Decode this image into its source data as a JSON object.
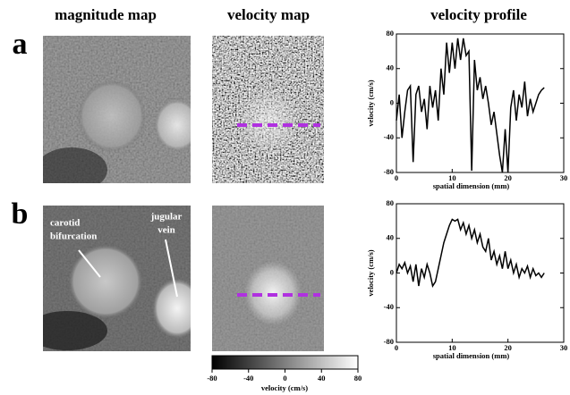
{
  "headers": [
    "magnitude map",
    "velocity map",
    "velocity profile"
  ],
  "panel_labels": [
    "a",
    "b"
  ],
  "annotations": [
    "carotid",
    "bifurcation",
    "jugular",
    "vein"
  ],
  "colorbar": {
    "ticks": [
      -80,
      -40,
      0,
      40,
      80
    ],
    "label": "velocity (cm/s)"
  },
  "chart_data": [
    {
      "type": "line",
      "xlabel": "spatial dimension (mm)",
      "ylabel": "velocity (cm/s)",
      "xlim": [
        0,
        30
      ],
      "xticks": [
        0,
        10,
        20,
        30
      ],
      "ylim": [
        -80,
        80
      ],
      "yticks": [
        -80,
        -40,
        0,
        40,
        80
      ],
      "color": "#000000",
      "x": [
        0,
        0.5,
        1,
        1.5,
        2,
        2.5,
        3,
        3.5,
        4,
        4.5,
        5,
        5.5,
        6,
        6.5,
        7,
        7.5,
        8,
        8.5,
        9,
        9.5,
        10,
        10.5,
        11,
        11.5,
        12,
        12.5,
        13,
        13.5,
        14,
        14.5,
        15,
        15.5,
        16,
        16.5,
        17,
        17.5,
        18,
        18.5,
        19,
        19.5,
        20,
        20.5,
        21,
        21.5,
        22,
        22.5,
        23,
        23.5,
        24,
        24.5,
        25,
        25.5,
        26,
        26.5
      ],
      "values": [
        -20,
        10,
        -40,
        -10,
        15,
        20,
        -68,
        10,
        20,
        -10,
        5,
        -30,
        20,
        -5,
        15,
        -20,
        40,
        10,
        70,
        35,
        70,
        40,
        75,
        50,
        75,
        55,
        60,
        -78,
        50,
        15,
        30,
        5,
        20,
        0,
        -25,
        -10,
        -35,
        -60,
        -80,
        -30,
        -80,
        -5,
        15,
        -20,
        10,
        -5,
        25,
        -15,
        5,
        -10,
        0,
        10,
        15,
        18
      ]
    },
    {
      "type": "line",
      "xlabel": "spatial dimension (mm)",
      "ylabel": "velocity (cm/s)",
      "xlim": [
        0,
        30
      ],
      "xticks": [
        0,
        10,
        20,
        30
      ],
      "ylim": [
        -80,
        80
      ],
      "yticks": [
        -80,
        -40,
        0,
        40,
        80
      ],
      "color": "#000000",
      "x": [
        0,
        0.5,
        1,
        1.5,
        2,
        2.5,
        3,
        3.5,
        4,
        4.5,
        5,
        5.5,
        6,
        6.5,
        7,
        7.5,
        8,
        8.5,
        9,
        9.5,
        10,
        10.5,
        11,
        11.5,
        12,
        12.5,
        13,
        13.5,
        14,
        14.5,
        15,
        15.5,
        16,
        16.5,
        17,
        17.5,
        18,
        18.5,
        19,
        19.5,
        20,
        20.5,
        21,
        21.5,
        22,
        22.5,
        23,
        23.5,
        24,
        24.5,
        25,
        25.5,
        26,
        26.5
      ],
      "values": [
        0,
        10,
        5,
        12,
        0,
        8,
        -10,
        10,
        -15,
        5,
        -5,
        10,
        0,
        -15,
        -10,
        5,
        20,
        35,
        45,
        55,
        62,
        60,
        62,
        50,
        58,
        45,
        55,
        40,
        50,
        35,
        45,
        30,
        25,
        40,
        15,
        25,
        10,
        20,
        5,
        25,
        5,
        15,
        0,
        10,
        -5,
        5,
        0,
        8,
        -5,
        5,
        -3,
        0,
        -5,
        0
      ]
    }
  ]
}
